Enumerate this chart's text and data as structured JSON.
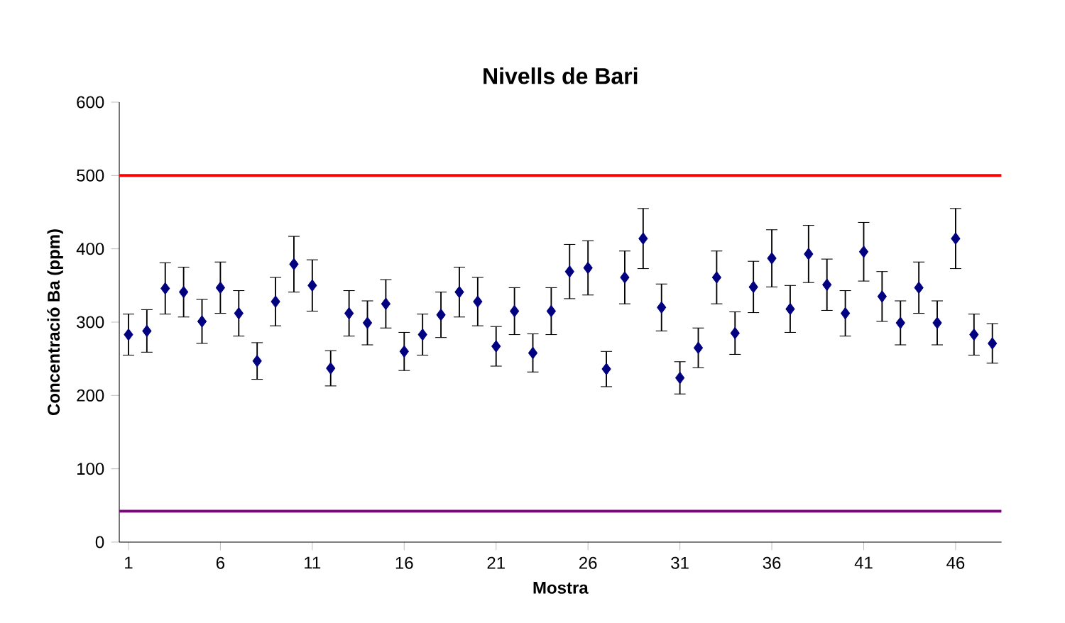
{
  "chart_data": {
    "type": "scatter",
    "title": "Nivells de Bari",
    "xlabel": "Mostra",
    "ylabel": "Concentració Ba (ppm)",
    "x": [
      1,
      2,
      3,
      4,
      5,
      6,
      7,
      8,
      9,
      10,
      11,
      12,
      13,
      14,
      15,
      16,
      17,
      18,
      19,
      20,
      21,
      22,
      23,
      24,
      25,
      26,
      27,
      28,
      29,
      30,
      31,
      32,
      33,
      34,
      35,
      36,
      37,
      38,
      39,
      40,
      41,
      42,
      43,
      44,
      45,
      46,
      47,
      48
    ],
    "series": [
      {
        "color": "#000080",
        "values": [
          283,
          288,
          346,
          341,
          301,
          347,
          312,
          247,
          328,
          379,
          350,
          237,
          312,
          299,
          325,
          260,
          283,
          310,
          341,
          328,
          267,
          315,
          258,
          315,
          369,
          374,
          236,
          361,
          414,
          320,
          224,
          265,
          361,
          285,
          348,
          387,
          318,
          393,
          351,
          312,
          396,
          335,
          299,
          347,
          299,
          414,
          283,
          271
        ],
        "errors": [
          28,
          29,
          35,
          34,
          30,
          35,
          31,
          25,
          33,
          38,
          35,
          24,
          31,
          30,
          33,
          26,
          28,
          31,
          34,
          33,
          27,
          32,
          26,
          32,
          37,
          37,
          24,
          36,
          41,
          32,
          22,
          27,
          36,
          29,
          35,
          39,
          32,
          39,
          35,
          31,
          40,
          34,
          30,
          35,
          30,
          41,
          28,
          27
        ]
      }
    ],
    "marker": "diamond",
    "line_style": "none",
    "xlim": [
      0.5,
      48.5
    ],
    "xticks": [
      1,
      6,
      11,
      16,
      21,
      26,
      31,
      36,
      41,
      46
    ],
    "ylim": [
      0,
      600
    ],
    "yticks": [
      0,
      100,
      200,
      300,
      400,
      500,
      600
    ],
    "ref_lines": [
      {
        "axis": "y",
        "value": 500,
        "color": "#ff0000"
      },
      {
        "axis": "y",
        "value": 42,
        "color": "#800080"
      }
    ],
    "grid": false
  }
}
